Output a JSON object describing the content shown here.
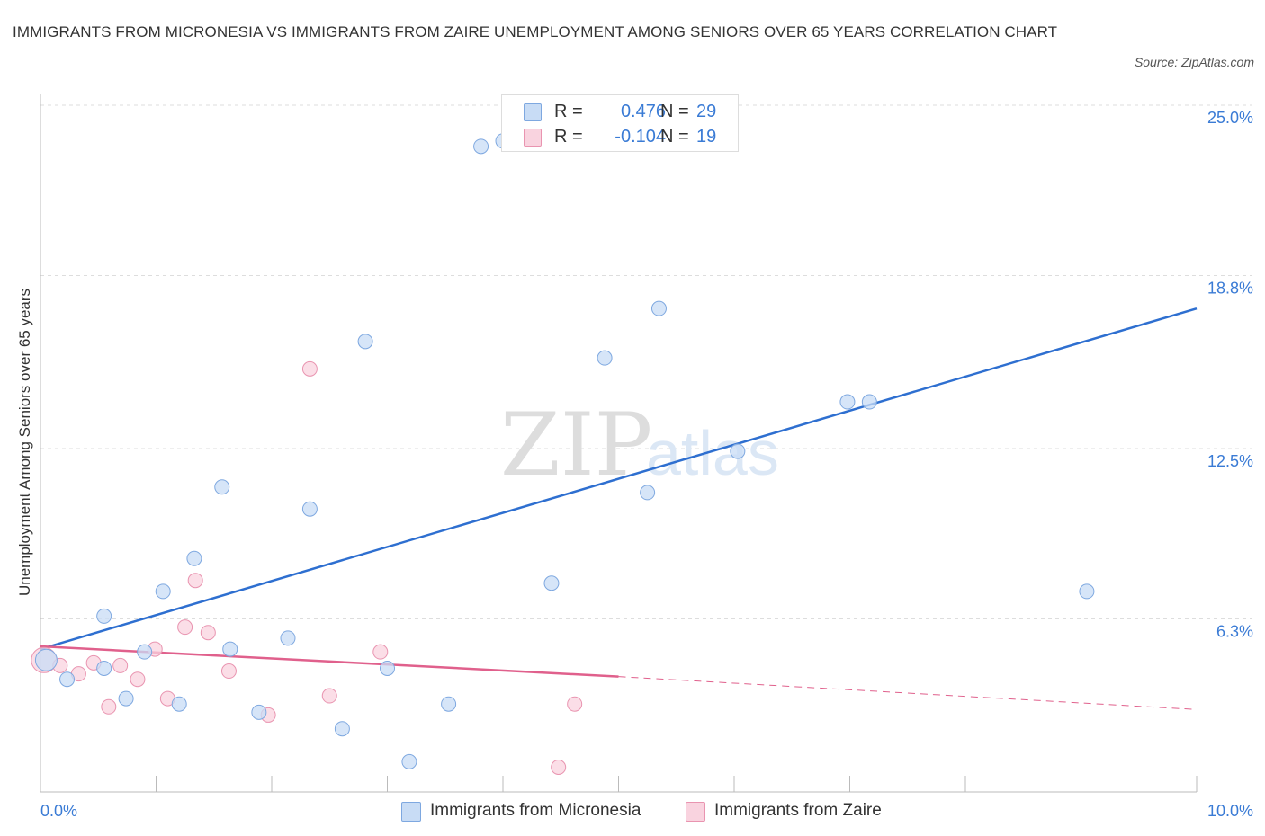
{
  "title": "IMMIGRANTS FROM MICRONESIA VS IMMIGRANTS FROM ZAIRE UNEMPLOYMENT AMONG SENIORS OVER 65 YEARS CORRELATION CHART",
  "source": "Source: ZipAtlas.com",
  "watermark": {
    "zip": "ZIP",
    "atlas": "atlas"
  },
  "legend": {
    "rows": [
      {
        "r_label": "R =",
        "r_value": "0.476",
        "n_label": "N =",
        "n_value": "29",
        "color": "#aecbf2"
      },
      {
        "r_label": "R =",
        "r_value": "-0.104",
        "n_label": "N =",
        "n_value": "19",
        "color": "#f7bfd0"
      }
    ]
  },
  "bottom_legend": {
    "micronesia": "Immigrants from Micronesia",
    "zaire": "Immigrants from Zaire"
  },
  "colors": {
    "blue_fill": "#c8dcf5",
    "blue_stroke": "#7ea8e0",
    "blue_line": "#2e6fd0",
    "pink_fill": "#f9d3df",
    "pink_stroke": "#e994b0",
    "pink_line": "#e0608c",
    "grid": "#dddddd",
    "tick_label": "#3a7bd5"
  },
  "chart_data": {
    "type": "scatter",
    "title": "IMMIGRANTS FROM MICRONESIA VS IMMIGRANTS FROM ZAIRE UNEMPLOYMENT AMONG SENIORS OVER 65 YEARS CORRELATION CHART",
    "xlabel": "",
    "ylabel": "Unemployment Among Seniors over 65 years",
    "xlim": [
      0,
      10
    ],
    "ylim": [
      0,
      25
    ],
    "x_tick_labels": [
      {
        "value": 0,
        "label": "0.0%"
      },
      {
        "value": 10,
        "label": "10.0%"
      }
    ],
    "x_minor_ticks": [
      0,
      1,
      2,
      3,
      4,
      5,
      6,
      7,
      8,
      9,
      10
    ],
    "y_tick_labels": [
      {
        "value": 6.3,
        "label": "6.3%"
      },
      {
        "value": 12.5,
        "label": "12.5%"
      },
      {
        "value": 18.8,
        "label": "18.8%"
      },
      {
        "value": 25.0,
        "label": "25.0%"
      }
    ],
    "grid": true,
    "series": [
      {
        "name": "Immigrants from Micronesia",
        "R": 0.476,
        "N": 29,
        "points": [
          [
            0.05,
            4.8
          ],
          [
            0.23,
            4.1
          ],
          [
            0.55,
            4.5
          ],
          [
            0.55,
            6.4
          ],
          [
            0.74,
            3.4
          ],
          [
            0.9,
            5.1
          ],
          [
            1.06,
            7.3
          ],
          [
            1.2,
            3.2
          ],
          [
            1.33,
            8.5
          ],
          [
            1.57,
            11.1
          ],
          [
            1.64,
            5.2
          ],
          [
            1.89,
            2.9
          ],
          [
            2.14,
            5.6
          ],
          [
            2.33,
            10.3
          ],
          [
            2.61,
            2.3
          ],
          [
            2.81,
            16.4
          ],
          [
            3.0,
            4.5
          ],
          [
            3.19,
            1.1
          ],
          [
            3.53,
            3.2
          ],
          [
            3.81,
            23.5
          ],
          [
            4.0,
            23.7
          ],
          [
            4.42,
            7.6
          ],
          [
            4.88,
            15.8
          ],
          [
            5.25,
            10.9
          ],
          [
            5.35,
            17.6
          ],
          [
            6.03,
            12.4
          ],
          [
            6.98,
            14.2
          ],
          [
            7.17,
            14.2
          ],
          [
            9.05,
            7.3
          ]
        ],
        "trend": {
          "x": [
            0,
            10
          ],
          "y": [
            5.2,
            17.6
          ]
        }
      },
      {
        "name": "Immigrants from Zaire",
        "R": -0.104,
        "N": 19,
        "points": [
          [
            0.03,
            4.8
          ],
          [
            0.17,
            4.6
          ],
          [
            0.33,
            4.3
          ],
          [
            0.46,
            4.7
          ],
          [
            0.59,
            3.1
          ],
          [
            0.69,
            4.6
          ],
          [
            0.84,
            4.1
          ],
          [
            0.99,
            5.2
          ],
          [
            1.1,
            3.4
          ],
          [
            1.25,
            6.0
          ],
          [
            1.34,
            7.7
          ],
          [
            1.45,
            5.8
          ],
          [
            1.63,
            4.4
          ],
          [
            1.97,
            2.8
          ],
          [
            2.33,
            15.4
          ],
          [
            2.5,
            3.5
          ],
          [
            2.94,
            5.1
          ],
          [
            4.48,
            0.9
          ],
          [
            4.62,
            3.2
          ]
        ],
        "trend": {
          "x": [
            0,
            5
          ],
          "y": [
            5.3,
            4.2
          ]
        },
        "trend_dashed": {
          "x": [
            5,
            10
          ],
          "y": [
            4.2,
            3.0
          ]
        }
      }
    ]
  }
}
